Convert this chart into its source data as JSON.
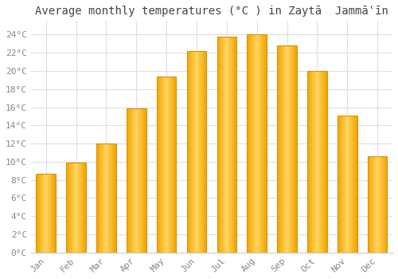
{
  "title": "Average monthly temperatures (°C ) in Zaytā  Jammāʿīn",
  "months": [
    "Jan",
    "Feb",
    "Mar",
    "Apr",
    "May",
    "Jun",
    "Jul",
    "Aug",
    "Sep",
    "Oct",
    "Nov",
    "Dec"
  ],
  "temperatures": [
    8.7,
    9.9,
    12.0,
    15.9,
    19.4,
    22.2,
    23.8,
    24.0,
    22.8,
    20.0,
    15.1,
    10.6
  ],
  "bar_color_light": "#FFD966",
  "bar_color_dark": "#F0A500",
  "background_color": "#FFFFFF",
  "grid_color": "#DDDDEE",
  "ylim": [
    0,
    25.5
  ],
  "yticks": [
    0,
    2,
    4,
    6,
    8,
    10,
    12,
    14,
    16,
    18,
    20,
    22,
    24
  ],
  "title_fontsize": 10,
  "tick_fontsize": 8,
  "tick_label_color": "#888888",
  "bar_width": 0.65
}
